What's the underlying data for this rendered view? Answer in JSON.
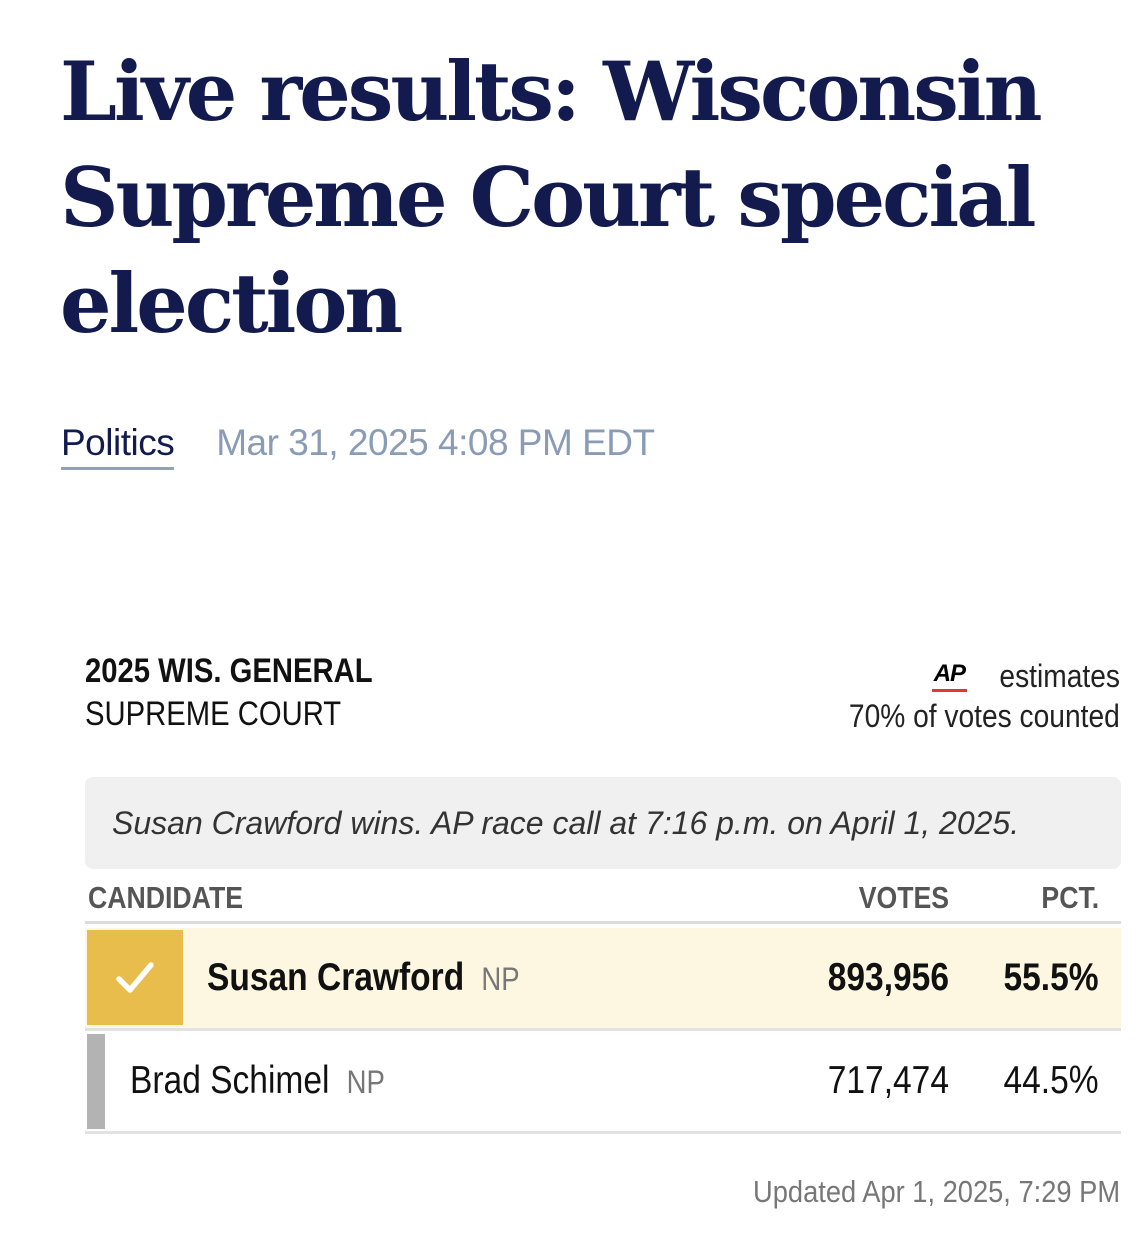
{
  "article": {
    "headline": "Live results: Wisconsin Supreme Court special election",
    "section": "Politics",
    "dateline": "Mar 31, 2025 4:08 PM EDT"
  },
  "widget": {
    "race_name": "2025 WIS. GENERAL",
    "office": "SUPREME COURT",
    "source_logo": "AP",
    "estimates_label": "estimates",
    "votes_counted": "70% of votes counted",
    "race_call": "Susan Crawford wins. AP race call at 7:16 p.m. on April 1, 2025.",
    "columns": {
      "candidate": "CANDIDATE",
      "votes": "VOTES",
      "pct": "PCT."
    },
    "candidates": [
      {
        "name": "Susan Crawford",
        "party": "NP",
        "votes": "893,956",
        "pct": "55.5%",
        "winner": true,
        "icon": "checkmark-icon"
      },
      {
        "name": "Brad Schimel",
        "party": "NP",
        "votes": "717,474",
        "pct": "44.5%",
        "winner": false
      }
    ],
    "updated": "Updated Apr 1, 2025, 7:29 PM"
  },
  "colors": {
    "headline": "#121a4e",
    "dateline": "#8a9bb5",
    "winner_highlight": "#e9bd4c",
    "winner_row_bg": "#fdf7e2",
    "loser_bar": "#b3b3b3",
    "ap_underline": "#e03a2e"
  }
}
